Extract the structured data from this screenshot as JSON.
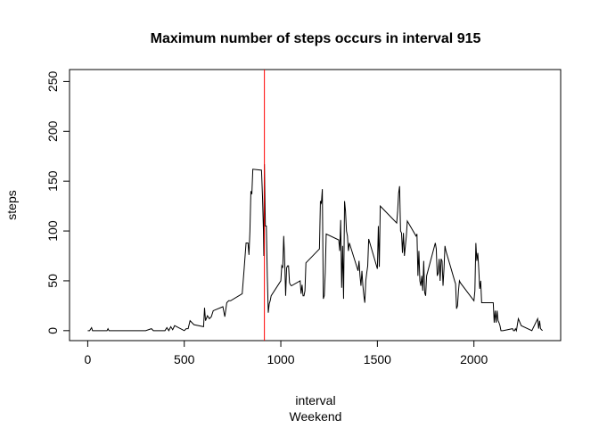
{
  "chart_data": {
    "type": "line",
    "title": "Maximum number of steps occurs in interval  915",
    "x_label": "interval",
    "subtitle": "Weekend",
    "y_label": "steps",
    "x": [
      0,
      10,
      20,
      25,
      100,
      105,
      110,
      200,
      300,
      330,
      340,
      400,
      410,
      420,
      430,
      440,
      450,
      500,
      510,
      520,
      530,
      540,
      550,
      600,
      605,
      610,
      620,
      630,
      640,
      650,
      700,
      710,
      720,
      730,
      740,
      800,
      810,
      820,
      830,
      835,
      840,
      845,
      850,
      855,
      900,
      905,
      910,
      912,
      915,
      920,
      925,
      930,
      935,
      940,
      945,
      950,
      1000,
      1005,
      1010,
      1015,
      1020,
      1025,
      1030,
      1035,
      1040,
      1045,
      1050,
      1055,
      1100,
      1105,
      1110,
      1115,
      1120,
      1125,
      1130,
      1200,
      1205,
      1210,
      1215,
      1220,
      1225,
      1230,
      1235,
      1300,
      1305,
      1310,
      1315,
      1320,
      1325,
      1330,
      1335,
      1340,
      1345,
      1350,
      1355,
      1400,
      1405,
      1410,
      1415,
      1420,
      1425,
      1430,
      1435,
      1440,
      1445,
      1450,
      1455,
      1500,
      1505,
      1510,
      1515,
      1600,
      1605,
      1610,
      1615,
      1620,
      1625,
      1630,
      1635,
      1640,
      1645,
      1650,
      1655,
      1700,
      1705,
      1710,
      1715,
      1720,
      1725,
      1730,
      1735,
      1740,
      1745,
      1750,
      1755,
      1800,
      1805,
      1810,
      1815,
      1820,
      1825,
      1830,
      1835,
      1840,
      1845,
      1850,
      1855,
      1900,
      1905,
      1910,
      1915,
      1920,
      1925,
      1930,
      2000,
      2005,
      2010,
      2015,
      2020,
      2025,
      2030,
      2035,
      2040,
      2100,
      2105,
      2110,
      2115,
      2120,
      2125,
      2130,
      2135,
      2140,
      2150,
      2200,
      2205,
      2210,
      2215,
      2220,
      2230,
      2245,
      2300,
      2330,
      2335,
      2340,
      2345,
      2355
    ],
    "values": [
      0,
      0,
      3,
      0,
      0,
      2,
      0,
      0,
      0,
      2,
      0,
      0,
      3,
      0,
      4,
      1,
      5,
      0,
      2,
      2,
      10,
      8,
      6,
      4,
      23,
      10,
      15,
      12,
      14,
      20,
      24,
      14,
      28,
      30,
      30,
      37,
      62,
      88,
      88,
      76,
      100,
      140,
      137,
      162,
      161,
      135,
      100,
      75,
      167,
      105,
      105,
      55,
      18,
      27,
      30,
      35,
      50,
      65,
      63,
      95,
      70,
      35,
      63,
      65,
      65,
      48,
      46,
      45,
      50,
      37,
      46,
      35,
      35,
      40,
      68,
      82,
      130,
      128,
      142,
      32,
      35,
      58,
      97,
      91,
      80,
      111,
      43,
      85,
      32,
      130,
      120,
      100,
      95,
      80,
      88,
      60,
      70,
      55,
      45,
      60,
      45,
      35,
      28,
      50,
      58,
      65,
      92,
      62,
      105,
      64,
      125,
      108,
      120,
      138,
      145,
      100,
      98,
      78,
      98,
      75,
      85,
      95,
      110,
      95,
      97,
      55,
      80,
      50,
      45,
      55,
      40,
      70,
      38,
      35,
      55,
      88,
      82,
      55,
      58,
      72,
      50,
      72,
      70,
      45,
      62,
      85,
      80,
      50,
      47,
      22,
      25,
      40,
      50,
      48,
      30,
      40,
      88,
      70,
      78,
      62,
      42,
      50,
      28,
      28,
      8,
      20,
      8,
      20,
      10,
      8,
      5,
      0,
      0,
      2,
      0,
      0,
      2,
      0,
      12,
      5,
      0,
      12,
      2,
      10,
      2,
      0
    ],
    "color": "#000000",
    "vline": 915,
    "vline_color": "#ff0000",
    "xlim": [
      -94.2,
      2449.2
    ],
    "xticks": [
      0,
      500,
      1000,
      1500,
      2000
    ],
    "ylim": [
      -10,
      262
    ],
    "yticks": [
      0,
      50,
      100,
      150,
      200,
      250
    ]
  }
}
